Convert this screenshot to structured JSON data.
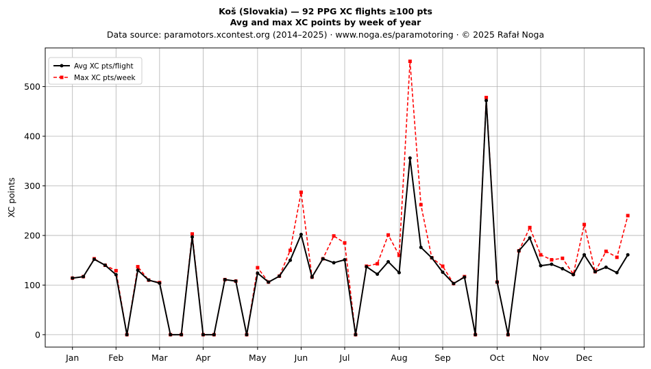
{
  "chart_data": {
    "type": "line",
    "title": "Koš (Slovakia)  —  92 PPG XC flights ≥100 pts",
    "subtitle": "Avg and max XC points by week of year",
    "source": "Data source: paramotors.xcontest.org (2014–2025)  ·  www.noga.es/paramotoring  ·  © 2025 Rafał Noga",
    "xlabel": "",
    "ylabel": "XC points",
    "xlim": [
      -1.5,
      53.5
    ],
    "ylim": [
      -25,
      578
    ],
    "grid": true,
    "legend_position": "top-left",
    "x_tick_labels": [
      {
        "week": 1,
        "label": "Jan"
      },
      {
        "week": 5,
        "label": "Feb"
      },
      {
        "week": 9,
        "label": "Mar"
      },
      {
        "week": 13,
        "label": "Apr"
      },
      {
        "week": 18,
        "label": "May"
      },
      {
        "week": 22,
        "label": "Jun"
      },
      {
        "week": 26,
        "label": "Jul"
      },
      {
        "week": 31,
        "label": "Aug"
      },
      {
        "week": 35,
        "label": "Sep"
      },
      {
        "week": 40,
        "label": "Oct"
      },
      {
        "week": 44,
        "label": "Nov"
      },
      {
        "week": 48,
        "label": "Dec"
      }
    ],
    "y_ticks": [
      0,
      100,
      200,
      300,
      400,
      500
    ],
    "x": [
      1,
      2,
      3,
      4,
      5,
      6,
      7,
      8,
      9,
      10,
      11,
      12,
      13,
      14,
      15,
      16,
      17,
      18,
      19,
      20,
      21,
      22,
      23,
      24,
      25,
      26,
      27,
      28,
      29,
      30,
      31,
      32,
      33,
      34,
      35,
      36,
      37,
      38,
      39,
      40,
      41,
      42,
      43,
      44,
      45,
      46,
      47,
      48,
      49,
      50,
      51,
      52
    ],
    "series": [
      {
        "name": "Avg XC pts/flight",
        "color": "#000000",
        "style": "solid",
        "marker": "circle",
        "values": [
          114,
          117,
          152,
          140,
          121,
          0,
          130,
          110,
          104,
          0,
          0,
          197,
          0,
          0,
          111,
          108,
          0,
          124,
          106,
          118,
          150,
          202,
          116,
          153,
          145,
          151,
          0,
          137,
          122,
          147,
          125,
          356,
          176,
          155,
          126,
          103,
          116,
          0,
          472,
          106,
          0,
          169,
          195,
          139,
          142,
          133,
          121,
          161,
          127,
          136,
          125,
          161
        ]
      },
      {
        "name": "Max XC pts/week",
        "color": "#ff0000",
        "style": "dashed",
        "marker": "square",
        "values": [
          114,
          117,
          153,
          140,
          129,
          0,
          137,
          110,
          105,
          0,
          0,
          203,
          0,
          0,
          111,
          108,
          0,
          135,
          106,
          118,
          170,
          287,
          116,
          153,
          199,
          185,
          0,
          138,
          143,
          201,
          160,
          551,
          262,
          155,
          138,
          103,
          117,
          0,
          478,
          106,
          0,
          169,
          216,
          161,
          151,
          154,
          122,
          222,
          127,
          168,
          156,
          240
        ]
      }
    ]
  }
}
